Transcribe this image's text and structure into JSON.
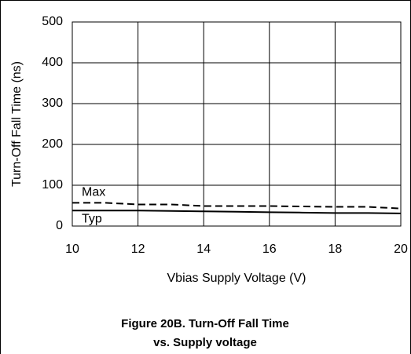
{
  "chart_data": {
    "type": "line",
    "title": "Figure 20B. Turn-Off Fall Time",
    "subtitle": "vs. Supply voltage",
    "x_label": "Vbias Supply Voltage (V)",
    "y_label": "Turn-Off Fall Time (ns)",
    "x": [
      10,
      11,
      12,
      13,
      14,
      15,
      16,
      17,
      18,
      19,
      20
    ],
    "series": [
      {
        "name": "Max",
        "color": "#000000",
        "style": "dashed",
        "values": [
          57,
          57,
          53,
          53,
          49,
          49,
          49,
          48,
          47,
          47,
          43
        ]
      },
      {
        "name": "Typ",
        "color": "#000000",
        "style": "solid",
        "values": [
          38,
          38,
          38,
          37,
          36,
          35,
          34,
          33,
          32,
          32,
          31
        ]
      }
    ],
    "xlim": [
      10,
      20
    ],
    "xticks": [
      10,
      12,
      14,
      16,
      18,
      20
    ],
    "ylim": [
      0,
      500
    ],
    "yticks": [
      0,
      100,
      200,
      300,
      400,
      500
    ],
    "grid": true
  }
}
